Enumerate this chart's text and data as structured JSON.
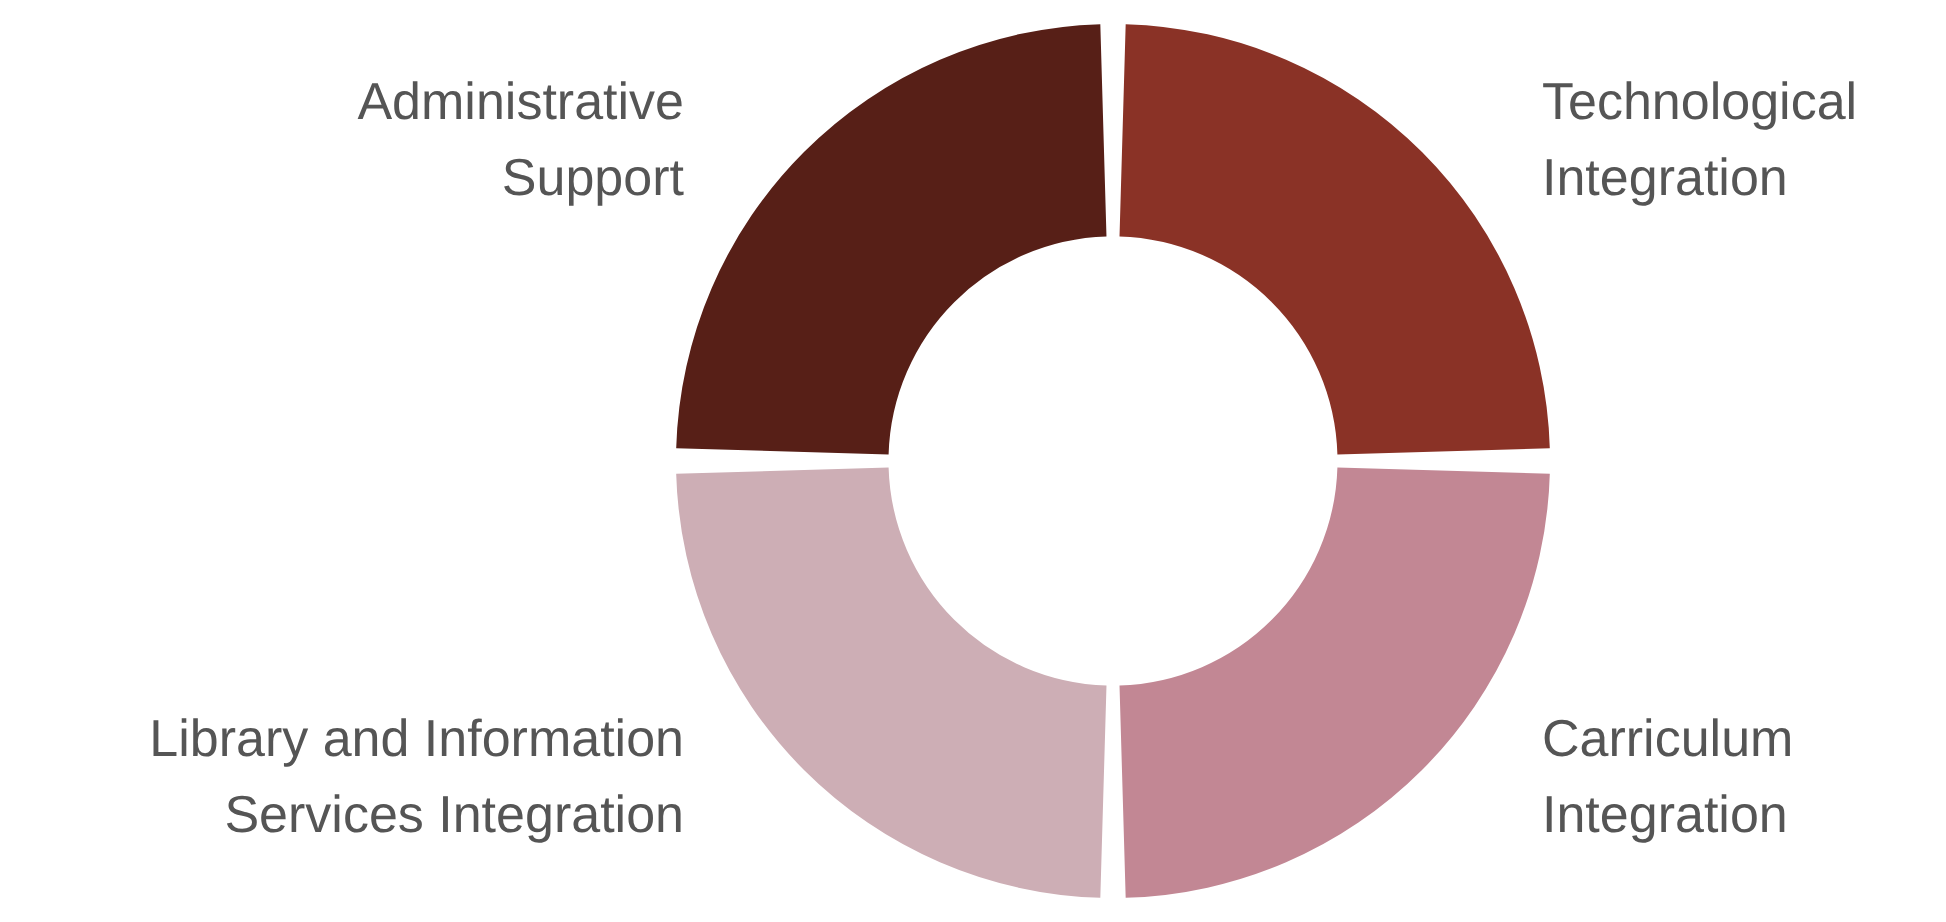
{
  "chart_data": {
    "type": "donut",
    "categories": [
      "Technological Integration",
      "Carriculum Integration",
      "Library and Information Services Integration",
      "Administrative Support"
    ],
    "values": [
      25,
      25,
      25,
      25
    ],
    "colors": [
      "#8a3226",
      "#c28794",
      "#cdaeb5",
      "#571f17"
    ],
    "legend": false
  }
}
